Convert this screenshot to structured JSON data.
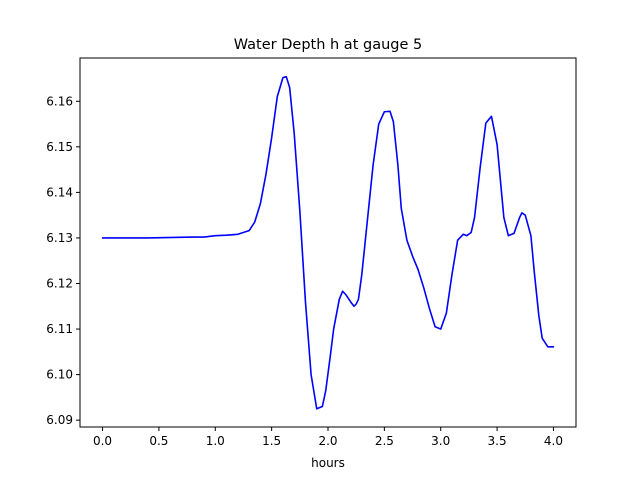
{
  "chart_data": {
    "type": "line",
    "title": "Water Depth h at gauge 5",
    "xlabel": "hours",
    "ylabel": "",
    "xlim": [
      -0.2,
      4.2
    ],
    "ylim": [
      6.0885,
      6.1695
    ],
    "xticks": [
      0.0,
      0.5,
      1.0,
      1.5,
      2.0,
      2.5,
      3.0,
      3.5,
      4.0
    ],
    "xtick_labels": [
      "0.0",
      "0.5",
      "1.0",
      "1.5",
      "2.0",
      "2.5",
      "3.0",
      "3.5",
      "4.0"
    ],
    "yticks": [
      6.09,
      6.1,
      6.11,
      6.12,
      6.13,
      6.14,
      6.15,
      6.16
    ],
    "ytick_labels": [
      "6.09",
      "6.10",
      "6.11",
      "6.12",
      "6.13",
      "6.14",
      "6.15",
      "6.16"
    ],
    "grid": false,
    "color": "#0000ff",
    "series": [
      {
        "x": [
          0.0,
          0.4,
          0.8,
          0.9,
          1.0,
          1.1,
          1.2,
          1.3,
          1.35,
          1.4,
          1.45,
          1.5,
          1.55,
          1.6,
          1.63,
          1.66,
          1.7,
          1.75,
          1.8,
          1.85,
          1.9,
          1.95,
          1.98,
          2.02,
          2.05,
          2.1,
          2.13,
          2.16,
          2.2,
          2.23,
          2.25,
          2.27,
          2.3,
          2.35,
          2.4,
          2.45,
          2.5,
          2.55,
          2.58,
          2.62,
          2.65,
          2.7,
          2.75,
          2.8,
          2.85,
          2.9,
          2.95,
          3.0,
          3.05,
          3.1,
          3.15,
          3.2,
          3.23,
          3.27,
          3.3,
          3.35,
          3.4,
          3.45,
          3.5,
          3.53,
          3.56,
          3.6,
          3.65,
          3.7,
          3.72,
          3.75,
          3.8,
          3.83,
          3.87,
          3.9,
          3.95,
          4.0
        ],
        "y": [
          6.13,
          6.13,
          6.1302,
          6.1302,
          6.1305,
          6.1306,
          6.1308,
          6.1316,
          6.1335,
          6.1375,
          6.144,
          6.152,
          6.161,
          6.1652,
          6.1654,
          6.163,
          6.153,
          6.136,
          6.116,
          6.1,
          6.0925,
          6.093,
          6.0965,
          6.104,
          6.11,
          6.1165,
          6.1183,
          6.1175,
          6.116,
          6.115,
          6.1155,
          6.1165,
          6.122,
          6.134,
          6.146,
          6.155,
          6.1577,
          6.1578,
          6.1555,
          6.146,
          6.1365,
          6.1295,
          6.126,
          6.123,
          6.119,
          6.1145,
          6.1105,
          6.11,
          6.1135,
          6.122,
          6.1295,
          6.1308,
          6.1305,
          6.1312,
          6.1345,
          6.1455,
          6.1552,
          6.1567,
          6.1505,
          6.1425,
          6.1345,
          6.1305,
          6.131,
          6.1345,
          6.1355,
          6.135,
          6.1305,
          6.1225,
          6.113,
          6.108,
          6.1061,
          6.1061
        ]
      }
    ]
  }
}
